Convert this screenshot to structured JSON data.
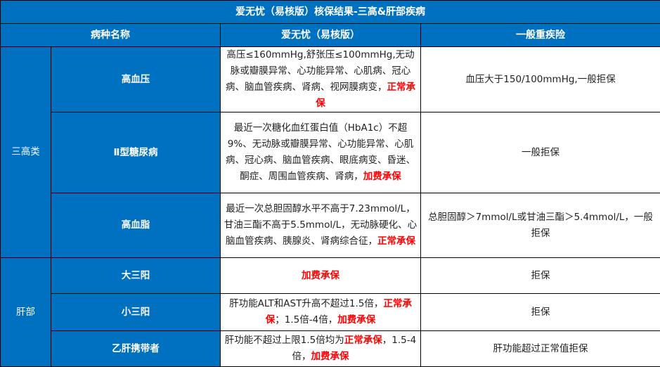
{
  "title": "爱无忧（易核版）核保结果-三高&肝部疾病",
  "headers": [
    "病种名称",
    "爱无忧（易核版）",
    "一般重疾险"
  ],
  "groups": [
    "三高类",
    "肝部"
  ],
  "rows": [
    {
      "name": "高血压",
      "product": [
        {
          "t": "高压≤160mmHg,舒张压≤100mmHg,无动脉或瓣膜异常、心功能异常、心肌病、冠心病、脑血管疾病、肾病、视网膜病变，"
        },
        {
          "t": "正常承保"
        }
      ],
      "general": "血压大于150/100mmHg,一般拒保"
    },
    {
      "name": "Ⅱ型糖尿病",
      "product": [
        {
          "t": "最近一次糖化血红蛋白值（HbA1c）不超9%、无动脉或瓣膜异常、心功能异常、心肌病、冠心病、脑血管疾病、眼底病变、昏迷、酮症、周围血管疾病、肾病，"
        },
        {
          "t": "加费承保"
        }
      ],
      "general": "一般拒保"
    },
    {
      "name": "高血脂",
      "product": [
        {
          "t": "最近一次总胆固醇水平不高于7.23mmol/L，甘油三酯不高于5.5mmol/L，无动脉硬化、心脑血管疾病、胰腺炎、肾病综合征，"
        },
        {
          "t": "正常承保"
        }
      ],
      "general": "总胆固醇＞7mmol/L或甘油三酯＞5.4mmol/L，一般拒保"
    },
    {
      "name": "大三阳",
      "product": [
        {
          "t": ""
        },
        {
          "t": "加费承保"
        }
      ],
      "general": "拒保"
    },
    {
      "name": "小三阳",
      "product": [
        {
          "t": "肝功能ALT和AST升高不超过1.5倍，"
        },
        {
          "t": "正常承保"
        },
        {
          "t": "；1.5倍-4倍，"
        },
        {
          "t": "加费承保"
        }
      ],
      "general": "拒保"
    },
    {
      "name": "乙肝携带者",
      "product": [
        {
          "t": "肝功能不超过上限1.5倍均为"
        },
        {
          "t": "正常承保"
        },
        {
          "t": "，1.5-4倍，"
        },
        {
          "t": "加费承保"
        }
      ],
      "general": "肝功能超过正常值拒保"
    }
  ],
  "colors": {
    "header": "#0070c0",
    "highlight": "#ff0000"
  }
}
